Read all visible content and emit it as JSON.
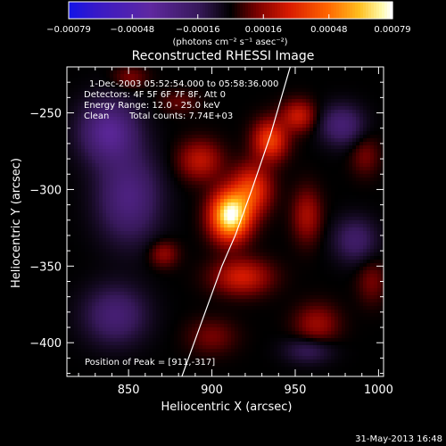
{
  "chart_data": {
    "type": "heatmap",
    "title": "Reconstructed RHESSI Image",
    "xlabel": "Heliocentric X (arcsec)",
    "ylabel": "Heliocentric Y (arcsec)",
    "xlim": [
      813,
      1003
    ],
    "ylim": [
      -422,
      -220
    ],
    "x_ticks": [
      {
        "value": 850,
        "label": "850"
      },
      {
        "value": 900,
        "label": "900"
      },
      {
        "value": 950,
        "label": "950"
      },
      {
        "value": 1000,
        "label": "1000"
      }
    ],
    "y_ticks": [
      {
        "value": -250,
        "label": "−250"
      },
      {
        "value": -300,
        "label": "−300"
      },
      {
        "value": -350,
        "label": "−350"
      },
      {
        "value": -400,
        "label": "−400"
      }
    ],
    "colorbar": {
      "range": [
        -0.00079,
        0.00079
      ],
      "ticks": [
        {
          "value": -0.00079,
          "label": "−0.00079"
        },
        {
          "value": -0.00048,
          "label": "−0.00048"
        },
        {
          "value": -0.00016,
          "label": "−0.00016"
        },
        {
          "value": 0.00016,
          "label": "0.00016"
        },
        {
          "value": 0.00048,
          "label": "0.00048"
        },
        {
          "value": 0.00079,
          "label": "0.00079"
        }
      ],
      "unit_label": "(photons cm⁻² s⁻¹ asec⁻²)"
    },
    "annotations": {
      "time_range": "1-Dec-2003 05:52:54.000 to 05:58:36.000",
      "detectors": "Detectors: 4F 5F 6F 7F 8F, Att 0",
      "energy": "Energy Range: 12.0 - 25.0 keV",
      "algorithm": "Clean",
      "total_counts": "Total counts: 7.74E+03",
      "peak": "Position of Peak = [911,-317]"
    },
    "peak_position": [
      911,
      -317
    ],
    "sources": [
      {
        "x": 911,
        "y": -317,
        "amp": 0.00079,
        "sx": 8,
        "sy": 11
      },
      {
        "x": 924,
        "y": -300,
        "amp": 0.00036,
        "sx": 8,
        "sy": 11
      },
      {
        "x": 935,
        "y": -268,
        "amp": 0.00038,
        "sx": 7,
        "sy": 9
      },
      {
        "x": 952,
        "y": -252,
        "amp": 0.00026,
        "sx": 7,
        "sy": 7
      },
      {
        "x": 918,
        "y": -357,
        "amp": 0.00028,
        "sx": 12,
        "sy": 8
      },
      {
        "x": 893,
        "y": -281,
        "amp": 0.00024,
        "sx": 9,
        "sy": 9
      },
      {
        "x": 957,
        "y": -317,
        "amp": 0.0002,
        "sx": 6,
        "sy": 12
      },
      {
        "x": 963,
        "y": -388,
        "amp": 0.00018,
        "sx": 9,
        "sy": 9
      },
      {
        "x": 871,
        "y": -342,
        "amp": 0.00017,
        "sx": 6,
        "sy": 6
      },
      {
        "x": 992,
        "y": -278,
        "amp": 0.00012,
        "sx": 6,
        "sy": 9
      },
      {
        "x": 851,
        "y": -227,
        "amp": 0.00013,
        "sx": 7,
        "sy": 5
      },
      {
        "x": 900,
        "y": -396,
        "amp": 0.00012,
        "sx": 10,
        "sy": 8
      },
      {
        "x": 996,
        "y": -360,
        "amp": 0.00012,
        "sx": 6,
        "sy": 10
      },
      {
        "x": 880,
        "y": -243,
        "amp": 0.0001,
        "sx": 8,
        "sy": 5
      },
      {
        "x": 838,
        "y": -262,
        "amp": -0.00034,
        "sx": 12,
        "sy": 14
      },
      {
        "x": 850,
        "y": -305,
        "amp": -0.00028,
        "sx": 13,
        "sy": 20
      },
      {
        "x": 842,
        "y": -382,
        "amp": -0.00024,
        "sx": 13,
        "sy": 13
      },
      {
        "x": 978,
        "y": -258,
        "amp": -0.00024,
        "sx": 9,
        "sy": 9
      },
      {
        "x": 986,
        "y": -333,
        "amp": -0.0002,
        "sx": 9,
        "sy": 10
      },
      {
        "x": 958,
        "y": -405,
        "amp": -0.00016,
        "sx": 10,
        "sy": 6
      }
    ],
    "limb_curve": [
      [
        882,
        -422
      ],
      [
        896,
        -380
      ],
      [
        906,
        -350
      ],
      [
        914,
        -330
      ],
      [
        924,
        -300
      ],
      [
        935,
        -265
      ],
      [
        947,
        -220
      ]
    ],
    "colors": {
      "background": "#000000",
      "foreground": "#ffffff",
      "limb": "#ffffff"
    }
  },
  "footer": {
    "date": "31-May-2013 16:48"
  }
}
